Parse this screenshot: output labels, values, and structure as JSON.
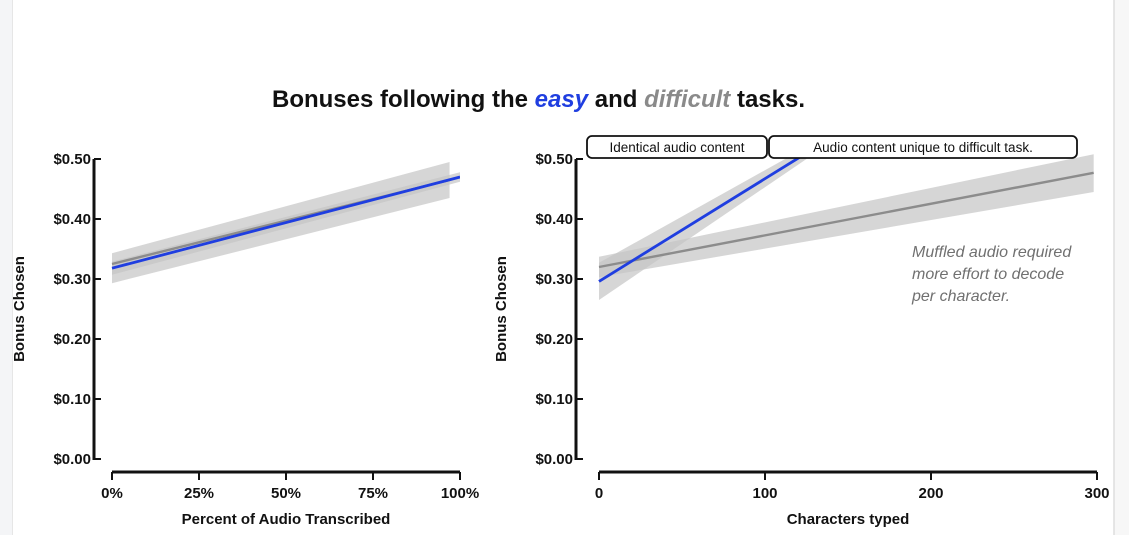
{
  "title": {
    "pre": "Bonuses following the ",
    "easy": "easy",
    "mid": " and ",
    "difficult": "difficult",
    "post": " tasks."
  },
  "colors": {
    "easy": "#1f3ee0",
    "difficult": "#8c8c8c",
    "band": "#c4c4c4"
  },
  "chart_data": [
    {
      "type": "line",
      "xlabel": "Percent of Audio Transcribed",
      "ylabel": "Bonus Chosen",
      "xlim": [
        0,
        100
      ],
      "ylim": [
        0,
        0.5
      ],
      "x_ticks": [
        0,
        25,
        50,
        75,
        100
      ],
      "x_tick_labels": [
        "0%",
        "25%",
        "50%",
        "75%",
        "100%"
      ],
      "y_ticks": [
        0,
        0.1,
        0.2,
        0.3,
        0.4,
        0.5
      ],
      "y_tick_labels": [
        "$0.00",
        "$0.10",
        "$0.20",
        "$0.30",
        "$0.40",
        "$0.50"
      ],
      "series": [
        {
          "name": "difficult",
          "color": "#8c8c8c",
          "x": [
            0,
            97
          ],
          "y": [
            0.325,
            0.465
          ],
          "ci_lower": [
            0.293,
            0.435
          ],
          "ci_upper": [
            0.343,
            0.495
          ]
        },
        {
          "name": "easy",
          "color": "#1f3ee0",
          "x": [
            0,
            100
          ],
          "y": [
            0.318,
            0.47
          ],
          "ci_lower": [
            0.307,
            0.462
          ],
          "ci_upper": [
            0.329,
            0.478
          ]
        }
      ]
    },
    {
      "type": "line",
      "xlabel": "Characters typed",
      "ylabel": "Bonus Chosen",
      "xlim": [
        0,
        300
      ],
      "ylim": [
        0,
        0.5
      ],
      "x_ticks": [
        0,
        100,
        200,
        300
      ],
      "x_tick_labels": [
        "0",
        "100",
        "200",
        "300"
      ],
      "y_ticks": [
        0,
        0.1,
        0.2,
        0.3,
        0.4,
        0.5
      ],
      "y_tick_labels": [
        "$0.00",
        "$0.10",
        "$0.20",
        "$0.30",
        "$0.40",
        "$0.50"
      ],
      "series": [
        {
          "name": "difficult",
          "color": "#8c8c8c",
          "x": [
            0,
            298
          ],
          "y": [
            0.32,
            0.477
          ],
          "ci_lower": [
            0.303,
            0.445
          ],
          "ci_upper": [
            0.337,
            0.508
          ]
        },
        {
          "name": "easy",
          "color": "#1f3ee0",
          "x": [
            0,
            125
          ],
          "y": [
            0.296,
            0.51
          ],
          "ci_lower": [
            0.265,
            0.5
          ],
          "ci_upper": [
            0.327,
            0.52
          ]
        }
      ],
      "boxes": [
        {
          "label": "Identical audio content"
        },
        {
          "label": "Audio content unique to difficult task."
        }
      ],
      "annotation": [
        "Muffled audio required",
        "more effort to decode",
        "per character."
      ]
    }
  ]
}
